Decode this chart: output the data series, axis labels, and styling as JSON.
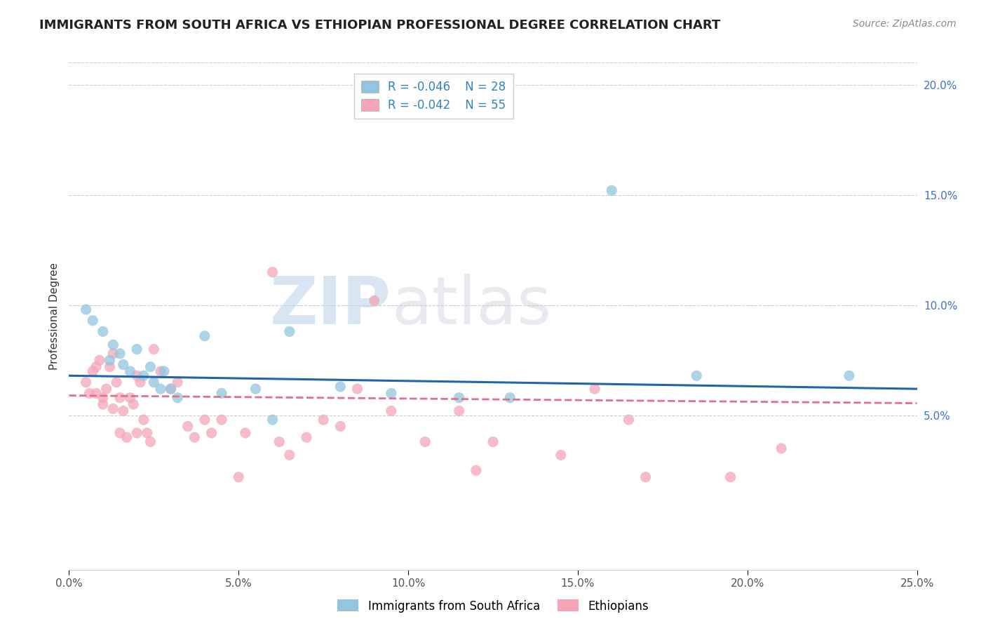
{
  "title": "IMMIGRANTS FROM SOUTH AFRICA VS ETHIOPIAN PROFESSIONAL DEGREE CORRELATION CHART",
  "source": "Source: ZipAtlas.com",
  "ylabel": "Professional Degree",
  "legend_labels": [
    "Immigrants from South Africa",
    "Ethiopians"
  ],
  "legend_r": [
    "R = -0.046",
    "R = -0.042"
  ],
  "legend_n": [
    "N = 28",
    "N = 55"
  ],
  "watermark_zip": "ZIP",
  "watermark_atlas": "atlas",
  "xlim": [
    0.0,
    0.25
  ],
  "ylim": [
    -0.02,
    0.21
  ],
  "xtick_labels": [
    "0.0%",
    "5.0%",
    "10.0%",
    "15.0%",
    "20.0%",
    "25.0%"
  ],
  "xtick_vals": [
    0.0,
    0.05,
    0.1,
    0.15,
    0.2,
    0.25
  ],
  "ytick_labels": [
    "5.0%",
    "10.0%",
    "15.0%",
    "20.0%"
  ],
  "ytick_vals": [
    0.05,
    0.1,
    0.15,
    0.2
  ],
  "blue_color": "#92c5de",
  "pink_color": "#f4a6b8",
  "blue_line_color": "#2166ac",
  "pink_line_color": "#e07090",
  "blue_scatter": [
    [
      0.005,
      0.098
    ],
    [
      0.007,
      0.093
    ],
    [
      0.01,
      0.088
    ],
    [
      0.012,
      0.075
    ],
    [
      0.013,
      0.082
    ],
    [
      0.015,
      0.078
    ],
    [
      0.016,
      0.073
    ],
    [
      0.018,
      0.07
    ],
    [
      0.02,
      0.08
    ],
    [
      0.022,
      0.068
    ],
    [
      0.024,
      0.072
    ],
    [
      0.025,
      0.065
    ],
    [
      0.027,
      0.062
    ],
    [
      0.028,
      0.07
    ],
    [
      0.03,
      0.062
    ],
    [
      0.032,
      0.058
    ],
    [
      0.04,
      0.086
    ],
    [
      0.045,
      0.06
    ],
    [
      0.055,
      0.062
    ],
    [
      0.06,
      0.048
    ],
    [
      0.065,
      0.088
    ],
    [
      0.08,
      0.063
    ],
    [
      0.095,
      0.06
    ],
    [
      0.115,
      0.058
    ],
    [
      0.13,
      0.058
    ],
    [
      0.16,
      0.152
    ],
    [
      0.185,
      0.068
    ],
    [
      0.23,
      0.068
    ]
  ],
  "pink_scatter": [
    [
      0.005,
      0.065
    ],
    [
      0.006,
      0.06
    ],
    [
      0.007,
      0.07
    ],
    [
      0.008,
      0.072
    ],
    [
      0.008,
      0.06
    ],
    [
      0.009,
      0.075
    ],
    [
      0.01,
      0.055
    ],
    [
      0.01,
      0.058
    ],
    [
      0.011,
      0.062
    ],
    [
      0.012,
      0.072
    ],
    [
      0.013,
      0.053
    ],
    [
      0.013,
      0.078
    ],
    [
      0.014,
      0.065
    ],
    [
      0.015,
      0.058
    ],
    [
      0.015,
      0.042
    ],
    [
      0.016,
      0.052
    ],
    [
      0.017,
      0.04
    ],
    [
      0.018,
      0.058
    ],
    [
      0.019,
      0.055
    ],
    [
      0.02,
      0.068
    ],
    [
      0.02,
      0.042
    ],
    [
      0.021,
      0.065
    ],
    [
      0.022,
      0.048
    ],
    [
      0.023,
      0.042
    ],
    [
      0.024,
      0.038
    ],
    [
      0.025,
      0.08
    ],
    [
      0.027,
      0.07
    ],
    [
      0.03,
      0.062
    ],
    [
      0.032,
      0.065
    ],
    [
      0.035,
      0.045
    ],
    [
      0.037,
      0.04
    ],
    [
      0.04,
      0.048
    ],
    [
      0.042,
      0.042
    ],
    [
      0.045,
      0.048
    ],
    [
      0.05,
      0.022
    ],
    [
      0.052,
      0.042
    ],
    [
      0.06,
      0.115
    ],
    [
      0.062,
      0.038
    ],
    [
      0.065,
      0.032
    ],
    [
      0.07,
      0.04
    ],
    [
      0.075,
      0.048
    ],
    [
      0.08,
      0.045
    ],
    [
      0.085,
      0.062
    ],
    [
      0.09,
      0.102
    ],
    [
      0.095,
      0.052
    ],
    [
      0.105,
      0.038
    ],
    [
      0.115,
      0.052
    ],
    [
      0.12,
      0.025
    ],
    [
      0.125,
      0.038
    ],
    [
      0.145,
      0.032
    ],
    [
      0.155,
      0.062
    ],
    [
      0.165,
      0.048
    ],
    [
      0.17,
      0.022
    ],
    [
      0.195,
      0.022
    ],
    [
      0.21,
      0.035
    ]
  ],
  "blue_trendline_x": [
    0.0,
    0.25
  ],
  "blue_trendline_y": [
    0.068,
    0.062
  ],
  "pink_trendline_x": [
    0.0,
    0.25
  ],
  "pink_trendline_y": [
    0.059,
    0.0555
  ],
  "background_color": "#ffffff",
  "plot_bg_color": "#ffffff",
  "grid_color": "#cccccc",
  "title_color": "#222222",
  "source_color": "#888888",
  "ytick_color": "#4472c4",
  "xtick_color": "#555555"
}
